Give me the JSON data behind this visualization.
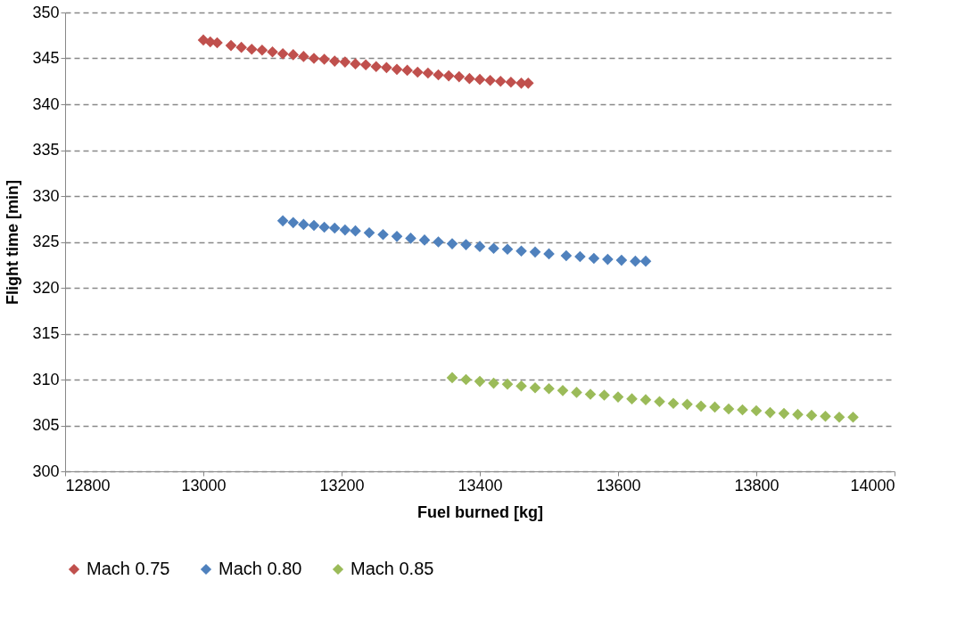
{
  "chart_data": {
    "type": "scatter",
    "xlabel": "Fuel burned [kg]",
    "ylabel": "Flight time [min]",
    "xlim": [
      12800,
      14000
    ],
    "xticks": [
      12800,
      13000,
      13200,
      13400,
      13600,
      13800,
      14000
    ],
    "ylim": [
      300,
      350
    ],
    "yticks": [
      300,
      305,
      310,
      315,
      320,
      325,
      330,
      335,
      340,
      345,
      350
    ],
    "grid": "y",
    "legend": "bottom",
    "marker": "diamond",
    "series": [
      {
        "name": "Mach 0.75",
        "color": "#c0504d",
        "x": [
          13000,
          13010,
          13020,
          13040,
          13055,
          13070,
          13085,
          13100,
          13115,
          13130,
          13145,
          13160,
          13175,
          13190,
          13205,
          13220,
          13235,
          13250,
          13265,
          13280,
          13295,
          13310,
          13325,
          13340,
          13355,
          13370,
          13385,
          13400,
          13415,
          13430,
          13445,
          13460,
          13470
        ],
        "values": [
          347.0,
          346.8,
          346.7,
          346.4,
          346.2,
          346.0,
          345.9,
          345.7,
          345.5,
          345.4,
          345.2,
          345.0,
          344.9,
          344.7,
          344.6,
          344.4,
          344.3,
          344.1,
          344.0,
          343.8,
          343.7,
          343.5,
          343.4,
          343.2,
          343.1,
          343.0,
          342.8,
          342.7,
          342.6,
          342.5,
          342.4,
          342.3,
          342.3
        ]
      },
      {
        "name": "Mach 0.80",
        "color": "#4f81bd",
        "x": [
          13115,
          13130,
          13145,
          13160,
          13175,
          13190,
          13205,
          13220,
          13240,
          13260,
          13280,
          13300,
          13320,
          13340,
          13360,
          13380,
          13400,
          13420,
          13440,
          13460,
          13480,
          13500,
          13525,
          13545,
          13565,
          13585,
          13605,
          13625,
          13640
        ],
        "values": [
          327.3,
          327.1,
          326.9,
          326.8,
          326.6,
          326.5,
          326.3,
          326.2,
          326.0,
          325.8,
          325.6,
          325.4,
          325.2,
          325.0,
          324.8,
          324.7,
          324.5,
          324.3,
          324.2,
          324.0,
          323.9,
          323.7,
          323.5,
          323.4,
          323.2,
          323.1,
          323.0,
          322.9,
          322.9
        ]
      },
      {
        "name": "Mach 0.85",
        "color": "#9bbb59",
        "x": [
          13360,
          13380,
          13400,
          13420,
          13440,
          13460,
          13480,
          13500,
          13520,
          13540,
          13560,
          13580,
          13600,
          13620,
          13640,
          13660,
          13680,
          13700,
          13720,
          13740,
          13760,
          13780,
          13800,
          13820,
          13840,
          13860,
          13880,
          13900,
          13920,
          13940
        ],
        "values": [
          310.2,
          310.0,
          309.8,
          309.6,
          309.5,
          309.3,
          309.1,
          309.0,
          308.8,
          308.6,
          308.4,
          308.3,
          308.1,
          307.9,
          307.8,
          307.6,
          307.4,
          307.3,
          307.1,
          307.0,
          306.8,
          306.7,
          306.6,
          306.4,
          306.3,
          306.2,
          306.1,
          306.0,
          305.9,
          305.9
        ]
      }
    ]
  }
}
